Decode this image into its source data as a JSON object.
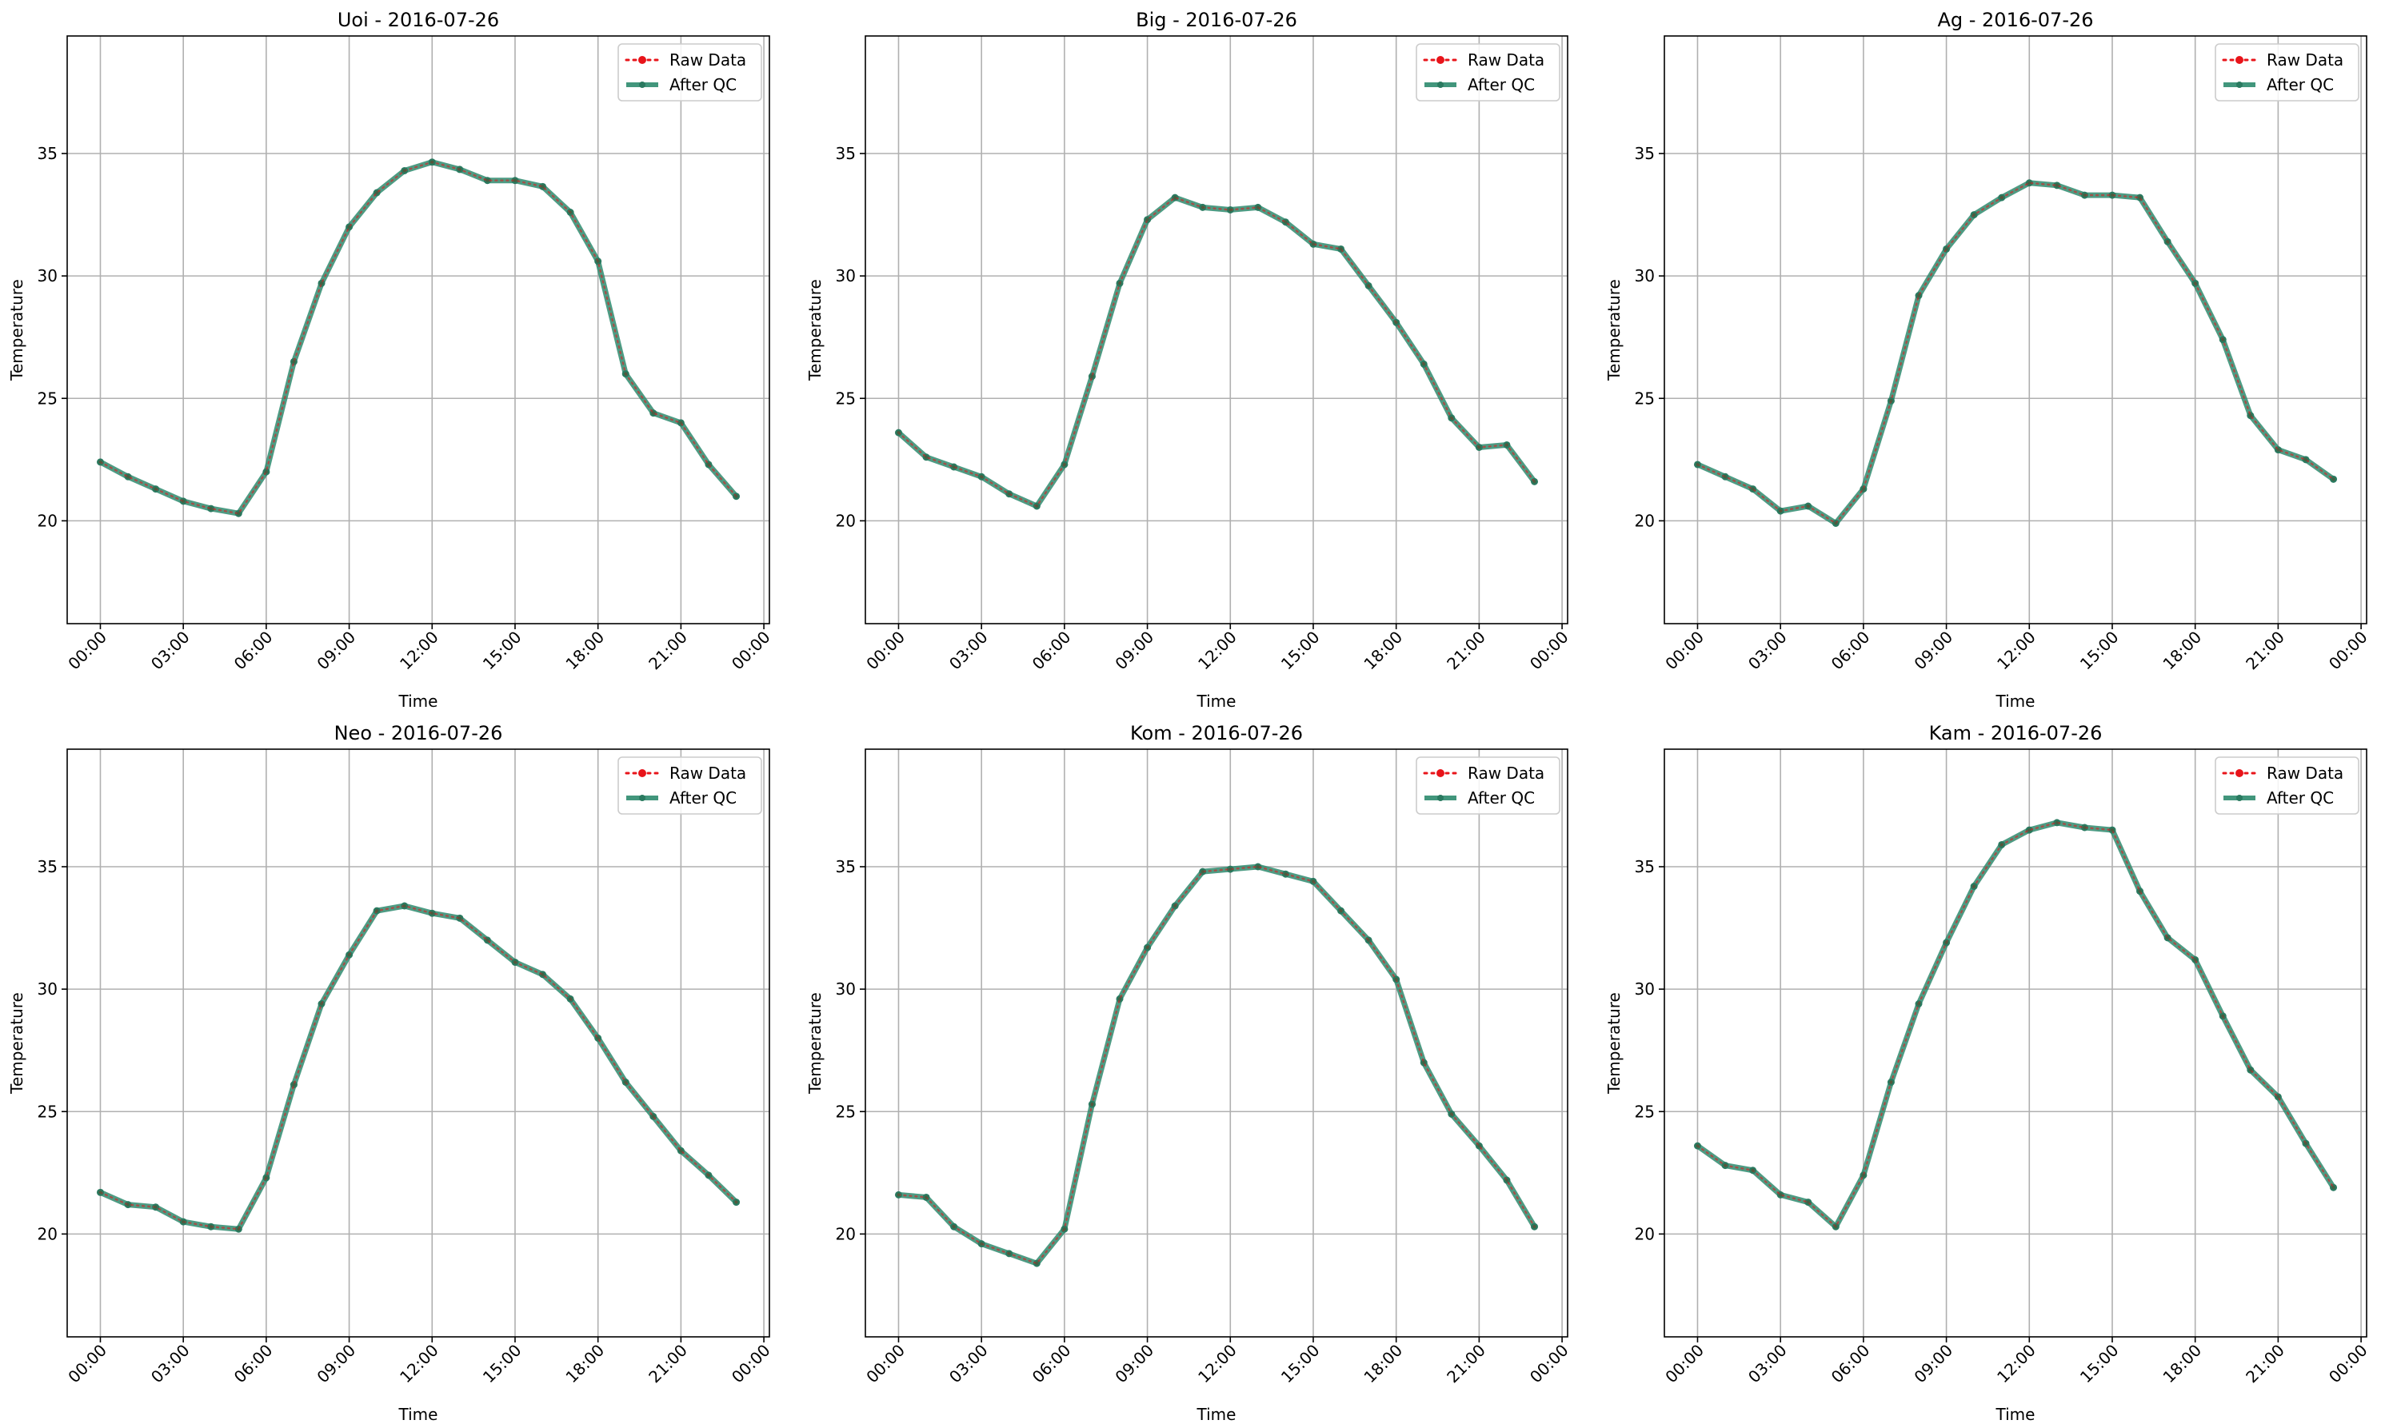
{
  "chart_data": [
    {
      "type": "line",
      "title": "Uoi - 2016-07-26",
      "xlabel": "Time",
      "ylabel": "Temperature",
      "ylim": [
        15.8,
        39.8
      ],
      "xlim_hours": [
        -1.2,
        24.2
      ],
      "x_ticks": [
        "00:00",
        "03:00",
        "06:00",
        "09:00",
        "12:00",
        "15:00",
        "18:00",
        "21:00",
        "00:00"
      ],
      "y_ticks": [
        20,
        25,
        30,
        35
      ],
      "grid": true,
      "legend_position": "top-right",
      "x": [
        "00:00",
        "01:00",
        "02:00",
        "03:00",
        "04:00",
        "05:00",
        "06:00",
        "07:00",
        "08:00",
        "09:00",
        "10:00",
        "11:00",
        "12:00",
        "13:00",
        "14:00",
        "15:00",
        "16:00",
        "17:00",
        "18:00",
        "19:00",
        "20:00",
        "21:00",
        "22:00",
        "23:00"
      ],
      "series": [
        {
          "name": "Raw Data",
          "color": "#e8141a",
          "style": "dotted-with-markers",
          "values": [
            22.4,
            21.8,
            21.3,
            20.8,
            20.5,
            20.3,
            22.0,
            26.5,
            29.7,
            32.0,
            33.4,
            34.3,
            34.65,
            34.35,
            33.9,
            33.9,
            33.65,
            32.6,
            30.6,
            26.0,
            24.4,
            24.0,
            22.3,
            21.0
          ]
        },
        {
          "name": "After QC",
          "color": "#2e8b6e",
          "style": "solid-with-markers",
          "values": [
            22.4,
            21.8,
            21.3,
            20.8,
            20.5,
            20.3,
            22.0,
            26.5,
            29.7,
            32.0,
            33.4,
            34.3,
            34.65,
            34.35,
            33.9,
            33.9,
            33.65,
            32.6,
            30.6,
            26.0,
            24.4,
            24.0,
            22.3,
            21.0
          ]
        }
      ]
    },
    {
      "type": "line",
      "title": "Big - 2016-07-26",
      "xlabel": "Time",
      "ylabel": "Temperature",
      "ylim": [
        15.8,
        39.8
      ],
      "xlim_hours": [
        -1.2,
        24.2
      ],
      "x_ticks": [
        "00:00",
        "03:00",
        "06:00",
        "09:00",
        "12:00",
        "15:00",
        "18:00",
        "21:00",
        "00:00"
      ],
      "y_ticks": [
        20,
        25,
        30,
        35
      ],
      "grid": true,
      "legend_position": "top-right",
      "x": [
        "00:00",
        "01:00",
        "02:00",
        "03:00",
        "04:00",
        "05:00",
        "06:00",
        "07:00",
        "08:00",
        "09:00",
        "10:00",
        "11:00",
        "12:00",
        "13:00",
        "14:00",
        "15:00",
        "16:00",
        "17:00",
        "18:00",
        "19:00",
        "20:00",
        "21:00",
        "22:00",
        "23:00"
      ],
      "series": [
        {
          "name": "Raw Data",
          "color": "#e8141a",
          "style": "dotted-with-markers",
          "values": [
            23.6,
            22.6,
            22.2,
            21.8,
            21.1,
            20.6,
            22.3,
            25.9,
            29.7,
            32.3,
            33.2,
            32.8,
            32.7,
            32.8,
            32.2,
            31.3,
            31.1,
            29.6,
            28.1,
            26.4,
            24.2,
            23.0,
            23.1,
            21.6
          ]
        },
        {
          "name": "After QC",
          "color": "#2e8b6e",
          "style": "solid-with-markers",
          "values": [
            23.6,
            22.6,
            22.2,
            21.8,
            21.1,
            20.6,
            22.3,
            25.9,
            29.7,
            32.3,
            33.2,
            32.8,
            32.7,
            32.8,
            32.2,
            31.3,
            31.1,
            29.6,
            28.1,
            26.4,
            24.2,
            23.0,
            23.1,
            21.6
          ]
        }
      ]
    },
    {
      "type": "line",
      "title": "Ag - 2016-07-26",
      "xlabel": "Time",
      "ylabel": "Temperature",
      "ylim": [
        15.8,
        39.8
      ],
      "xlim_hours": [
        -1.2,
        24.2
      ],
      "x_ticks": [
        "00:00",
        "03:00",
        "06:00",
        "09:00",
        "12:00",
        "15:00",
        "18:00",
        "21:00",
        "00:00"
      ],
      "y_ticks": [
        20,
        25,
        30,
        35
      ],
      "grid": true,
      "legend_position": "top-right",
      "x": [
        "00:00",
        "01:00",
        "02:00",
        "03:00",
        "04:00",
        "05:00",
        "06:00",
        "07:00",
        "08:00",
        "09:00",
        "10:00",
        "11:00",
        "12:00",
        "13:00",
        "14:00",
        "15:00",
        "16:00",
        "17:00",
        "18:00",
        "19:00",
        "20:00",
        "21:00",
        "22:00",
        "23:00"
      ],
      "series": [
        {
          "name": "Raw Data",
          "color": "#e8141a",
          "style": "dotted-with-markers",
          "values": [
            22.3,
            21.8,
            21.3,
            20.4,
            20.6,
            19.9,
            21.3,
            24.9,
            29.2,
            31.1,
            32.5,
            33.2,
            33.8,
            33.7,
            33.3,
            33.3,
            33.2,
            31.4,
            29.7,
            27.4,
            24.3,
            22.9,
            22.5,
            21.7
          ]
        },
        {
          "name": "After QC",
          "color": "#2e8b6e",
          "style": "solid-with-markers",
          "values": [
            22.3,
            21.8,
            21.3,
            20.4,
            20.6,
            19.9,
            21.3,
            24.9,
            29.2,
            31.1,
            32.5,
            33.2,
            33.8,
            33.7,
            33.3,
            33.3,
            33.2,
            31.4,
            29.7,
            27.4,
            24.3,
            22.9,
            22.5,
            21.7
          ]
        }
      ]
    },
    {
      "type": "line",
      "title": "Neo - 2016-07-26",
      "xlabel": "Time",
      "ylabel": "Temperature",
      "ylim": [
        15.8,
        39.8
      ],
      "xlim_hours": [
        -1.2,
        24.2
      ],
      "x_ticks": [
        "00:00",
        "03:00",
        "06:00",
        "09:00",
        "12:00",
        "15:00",
        "18:00",
        "21:00",
        "00:00"
      ],
      "y_ticks": [
        20,
        25,
        30,
        35
      ],
      "grid": true,
      "legend_position": "top-right",
      "x": [
        "00:00",
        "01:00",
        "02:00",
        "03:00",
        "04:00",
        "05:00",
        "06:00",
        "07:00",
        "08:00",
        "09:00",
        "10:00",
        "11:00",
        "12:00",
        "13:00",
        "14:00",
        "15:00",
        "16:00",
        "17:00",
        "18:00",
        "19:00",
        "20:00",
        "21:00",
        "22:00",
        "23:00"
      ],
      "series": [
        {
          "name": "Raw Data",
          "color": "#e8141a",
          "style": "dotted-with-markers",
          "values": [
            21.7,
            21.2,
            21.1,
            20.5,
            20.3,
            20.2,
            22.3,
            26.1,
            29.4,
            31.4,
            33.2,
            33.4,
            33.1,
            32.9,
            32.0,
            31.1,
            30.6,
            29.6,
            28.0,
            26.2,
            24.8,
            23.4,
            22.4,
            21.3
          ]
        },
        {
          "name": "After QC",
          "color": "#2e8b6e",
          "style": "solid-with-markers",
          "values": [
            21.7,
            21.2,
            21.1,
            20.5,
            20.3,
            20.2,
            22.3,
            26.1,
            29.4,
            31.4,
            33.2,
            33.4,
            33.1,
            32.9,
            32.0,
            31.1,
            30.6,
            29.6,
            28.0,
            26.2,
            24.8,
            23.4,
            22.4,
            21.3
          ]
        }
      ]
    },
    {
      "type": "line",
      "title": "Kom - 2016-07-26",
      "xlabel": "Time",
      "ylabel": "Temperature",
      "ylim": [
        15.8,
        39.8
      ],
      "xlim_hours": [
        -1.2,
        24.2
      ],
      "x_ticks": [
        "00:00",
        "03:00",
        "06:00",
        "09:00",
        "12:00",
        "15:00",
        "18:00",
        "21:00",
        "00:00"
      ],
      "y_ticks": [
        20,
        25,
        30,
        35
      ],
      "grid": true,
      "legend_position": "top-right",
      "x": [
        "00:00",
        "01:00",
        "02:00",
        "03:00",
        "04:00",
        "05:00",
        "06:00",
        "07:00",
        "08:00",
        "09:00",
        "10:00",
        "11:00",
        "12:00",
        "13:00",
        "14:00",
        "15:00",
        "16:00",
        "17:00",
        "18:00",
        "19:00",
        "20:00",
        "21:00",
        "22:00",
        "23:00"
      ],
      "series": [
        {
          "name": "Raw Data",
          "color": "#e8141a",
          "style": "dotted-with-markers",
          "values": [
            21.6,
            21.5,
            20.3,
            19.6,
            19.2,
            18.8,
            20.2,
            25.3,
            29.6,
            31.7,
            33.4,
            34.8,
            34.9,
            35.0,
            34.7,
            34.4,
            33.2,
            32.0,
            30.4,
            27.0,
            24.9,
            23.6,
            22.2,
            20.3
          ]
        },
        {
          "name": "After QC",
          "color": "#2e8b6e",
          "style": "solid-with-markers",
          "values": [
            21.6,
            21.5,
            20.3,
            19.6,
            19.2,
            18.8,
            20.2,
            25.3,
            29.6,
            31.7,
            33.4,
            34.8,
            34.9,
            35.0,
            34.7,
            34.4,
            33.2,
            32.0,
            30.4,
            27.0,
            24.9,
            23.6,
            22.2,
            20.3
          ]
        }
      ]
    },
    {
      "type": "line",
      "title": "Kam - 2016-07-26",
      "xlabel": "Time",
      "ylabel": "Temperature",
      "ylim": [
        15.8,
        39.8
      ],
      "xlim_hours": [
        -1.2,
        24.2
      ],
      "x_ticks": [
        "00:00",
        "03:00",
        "06:00",
        "09:00",
        "12:00",
        "15:00",
        "18:00",
        "21:00",
        "00:00"
      ],
      "y_ticks": [
        20,
        25,
        30,
        35
      ],
      "grid": true,
      "legend_position": "top-right",
      "x": [
        "00:00",
        "01:00",
        "02:00",
        "03:00",
        "04:00",
        "05:00",
        "06:00",
        "07:00",
        "08:00",
        "09:00",
        "10:00",
        "11:00",
        "12:00",
        "13:00",
        "14:00",
        "15:00",
        "16:00",
        "17:00",
        "18:00",
        "19:00",
        "20:00",
        "21:00",
        "22:00",
        "23:00"
      ],
      "series": [
        {
          "name": "Raw Data",
          "color": "#e8141a",
          "style": "dotted-with-markers",
          "values": [
            23.6,
            22.8,
            22.6,
            21.6,
            21.3,
            20.3,
            22.4,
            26.2,
            29.4,
            31.9,
            34.2,
            35.9,
            36.5,
            36.8,
            36.6,
            36.5,
            34.0,
            32.1,
            31.2,
            28.9,
            26.7,
            25.6,
            23.7,
            21.9
          ]
        },
        {
          "name": "After QC",
          "color": "#2e8b6e",
          "style": "solid-with-markers",
          "values": [
            23.6,
            22.8,
            22.6,
            21.6,
            21.3,
            20.3,
            22.4,
            26.2,
            29.4,
            31.9,
            34.2,
            35.9,
            36.5,
            36.8,
            36.6,
            36.5,
            34.0,
            32.1,
            31.2,
            28.9,
            26.7,
            25.6,
            23.7,
            21.9
          ]
        }
      ]
    }
  ]
}
